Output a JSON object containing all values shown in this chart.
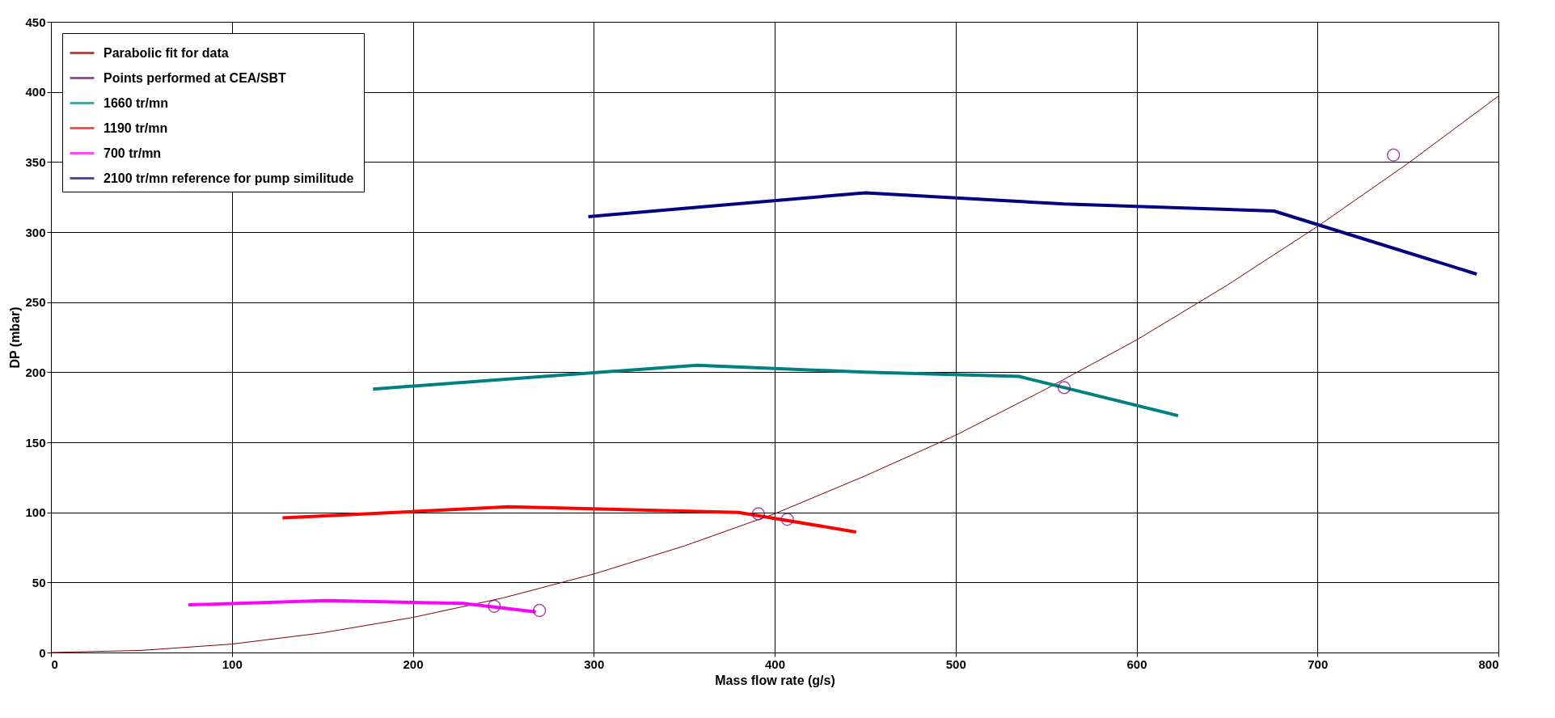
{
  "chart_data": {
    "type": "line",
    "xlabel": "Mass flow rate (g/s)",
    "ylabel": "DP (mbar)",
    "xlim": [
      0,
      800
    ],
    "ylim": [
      0,
      450
    ],
    "xticks": [
      0,
      100,
      200,
      300,
      400,
      500,
      600,
      700,
      800
    ],
    "yticks": [
      0,
      50,
      100,
      150,
      200,
      250,
      300,
      350,
      400,
      450
    ],
    "grid": true,
    "legend": "top left",
    "series": [
      {
        "name": "Parabolic fit for data",
        "color": "#800000",
        "x": [
          0,
          50,
          100,
          150,
          200,
          250,
          300,
          350,
          400,
          450,
          500,
          550,
          600,
          650,
          700,
          750,
          800
        ],
        "values": [
          0,
          1.5,
          6,
          14,
          25,
          39,
          56,
          76,
          99,
          126,
          155,
          188,
          223,
          262,
          304,
          349,
          397
        ]
      },
      {
        "name": "Points performed at CEA/SBT",
        "type": "scatter",
        "marker": "circle",
        "color": "#800080",
        "x": [
          245,
          270,
          391,
          407,
          560,
          742
        ],
        "values": [
          33,
          30,
          99,
          95,
          189,
          355
        ]
      },
      {
        "name": "1660 tr/mn",
        "color": "#008080",
        "x": [
          178,
          357,
          450,
          535,
          623
        ],
        "values": [
          188,
          205,
          200,
          197,
          169
        ]
      },
      {
        "name": "1190 tr/mn",
        "color": "#ff0000",
        "x": [
          128,
          253,
          380,
          445
        ],
        "values": [
          96,
          104,
          100,
          86
        ]
      },
      {
        "name": "700 tr/mn",
        "color": "#ff00ff",
        "x": [
          76,
          152,
          228,
          268
        ],
        "values": [
          34,
          37,
          35,
          29
        ]
      },
      {
        "name": "2100 tr/mn reference for pump  similitude",
        "color": "#000080",
        "x": [
          297,
          450,
          560,
          676,
          788
        ],
        "values": [
          311,
          328,
          320,
          315,
          270
        ]
      }
    ]
  }
}
